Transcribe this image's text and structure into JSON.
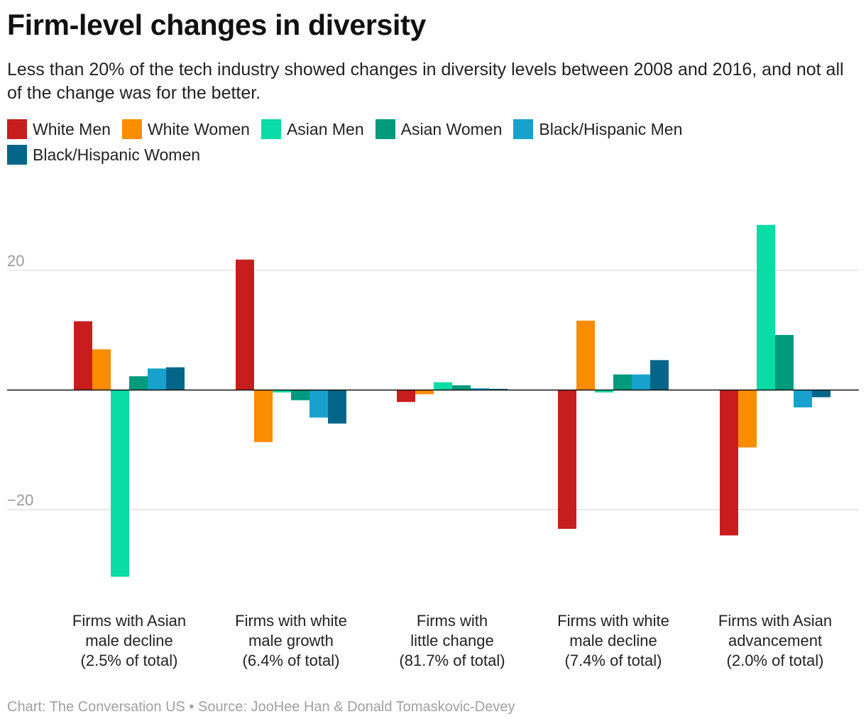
{
  "header": {
    "title": "Firm-level changes in diversity",
    "subtitle": "Less than 20% of the tech industry showed changes in diversity levels between 2008 and 2016, and not all of the change was for the better."
  },
  "legend": [
    {
      "label": "White Men",
      "color": "#c71e1d"
    },
    {
      "label": "White Women",
      "color": "#fa8c00"
    },
    {
      "label": "Asian Men",
      "color": "#09dca4"
    },
    {
      "label": "Asian Women",
      "color": "#009a7c"
    },
    {
      "label": "Black/Hispanic Men",
      "color": "#18a1cd"
    },
    {
      "label": "Black/Hispanic Women",
      "color": "#036688"
    }
  ],
  "footer": {
    "text": "Chart: The Conversation US • Source: JooHee Han & Donald Tomaskovic-Devey"
  },
  "chart_data": {
    "type": "bar",
    "categories": [
      "Firms with Asian male decline (2.5% of total)",
      "Firms with white male growth (6.4% of total)",
      "Firms with little change (81.7% of total)",
      "Firms with white male decline (7.4% of total)",
      "Firms with Asian advancement (2.0% of total)"
    ],
    "series": [
      {
        "name": "White Men",
        "color": "#c71e1d",
        "values": [
          11.5,
          21.8,
          -2.0,
          -23.2,
          -24.3
        ]
      },
      {
        "name": "White Women",
        "color": "#fa8c00",
        "values": [
          6.8,
          -8.7,
          -0.7,
          11.6,
          -9.6
        ]
      },
      {
        "name": "Asian Men",
        "color": "#09dca4",
        "values": [
          -31.2,
          -0.4,
          1.3,
          -0.4,
          27.6
        ]
      },
      {
        "name": "Asian Women",
        "color": "#009a7c",
        "values": [
          2.3,
          -1.7,
          0.8,
          2.6,
          9.2
        ]
      },
      {
        "name": "Black/Hispanic Men",
        "color": "#18a1cd",
        "values": [
          3.6,
          -4.6,
          0.3,
          2.6,
          -2.9
        ]
      },
      {
        "name": "Black/Hispanic Women",
        "color": "#036688",
        "values": [
          3.8,
          -5.6,
          0.2,
          5.0,
          -1.2
        ]
      }
    ],
    "yticks": [
      20,
      -20
    ],
    "ylim": [
      -36,
      36
    ],
    "grid": true,
    "legend_position": "top"
  }
}
